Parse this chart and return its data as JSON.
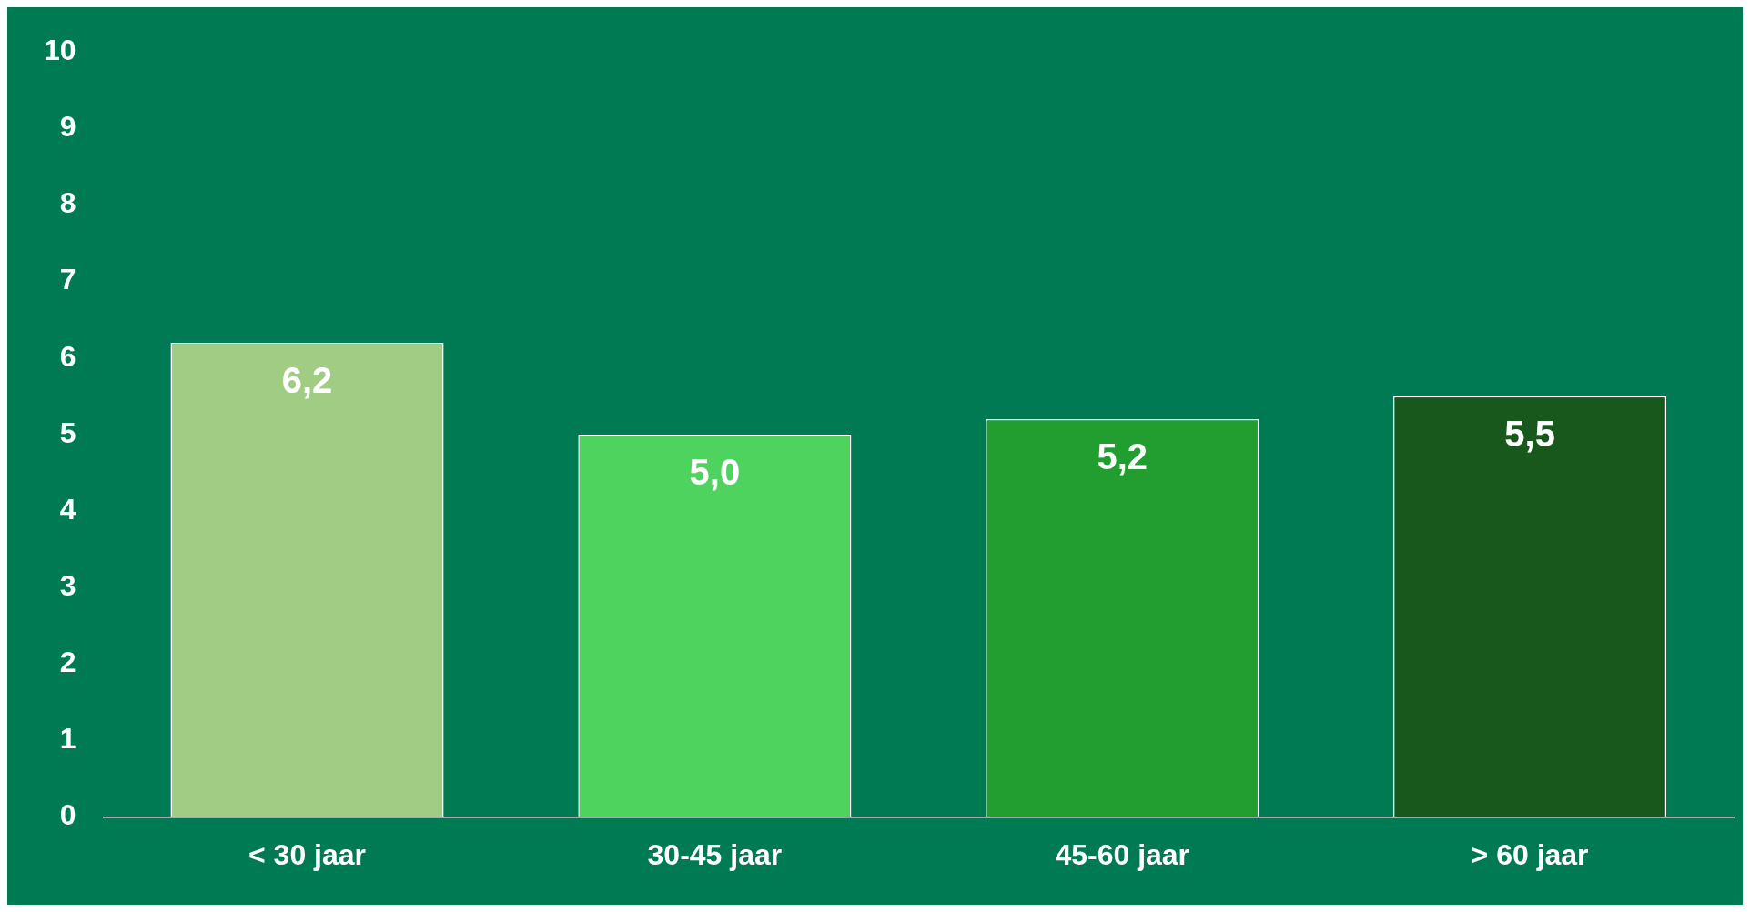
{
  "chart_data": {
    "type": "bar",
    "categories": [
      "< 30 jaar",
      "30-45 jaar",
      "45-60 jaar",
      "> 60 jaar"
    ],
    "values": [
      6.2,
      5.0,
      5.2,
      5.5
    ],
    "colors": [
      "#a1cc83",
      "#4ed35f",
      "#229e30",
      "#18581d"
    ],
    "value_labels": [
      "6,2",
      "5,0",
      "5,2",
      "5,5"
    ],
    "ylim": [
      0,
      10
    ],
    "yticks": [
      0,
      1,
      2,
      3,
      4,
      5,
      6,
      7,
      8,
      9,
      10
    ],
    "grid": false,
    "legend": false
  }
}
